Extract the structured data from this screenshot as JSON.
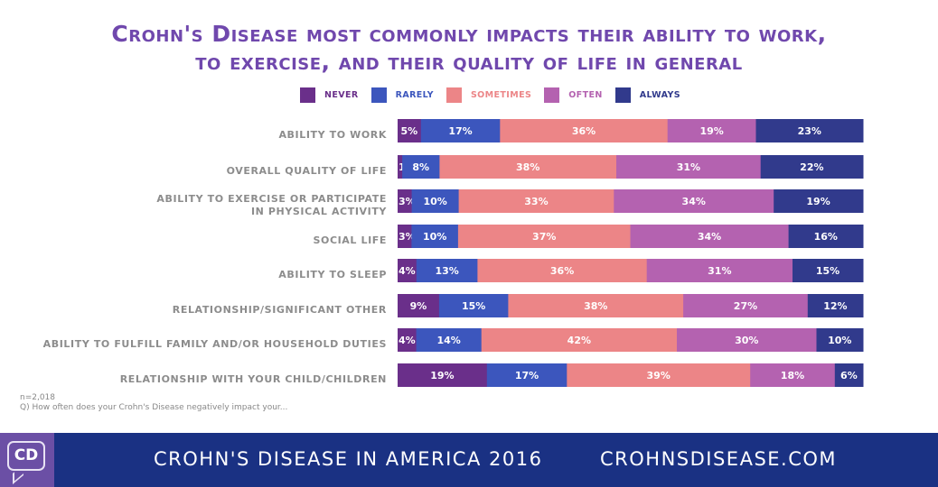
{
  "title_line1": "Crohn's Disease most commonly impacts their ability to work,",
  "title_line2": "to exercise, and their quality of life in general",
  "colors": {
    "never": "#6a2f8a",
    "rarely": "#3c56bd",
    "sometimes": "#ec8587",
    "often": "#b462b0",
    "always": "#313a8c"
  },
  "legend": [
    {
      "key": "never",
      "label": "NEVER"
    },
    {
      "key": "rarely",
      "label": "RARELY"
    },
    {
      "key": "sometimes",
      "label": "SOMETIMES"
    },
    {
      "key": "often",
      "label": "OFTEN"
    },
    {
      "key": "always",
      "label": "ALWAYS"
    }
  ],
  "chart_data": {
    "type": "bar",
    "orientation": "horizontal",
    "stacked": true,
    "title": "Crohn's Disease most commonly impacts their ability to work, to exercise, and their quality of life in general",
    "legend_position": "top",
    "categories": [
      [
        "ABILITY TO WORK"
      ],
      [
        "OVERALL QUALITY OF LIFE"
      ],
      [
        "ABILITY TO EXERCISE OR PARTICIPATE",
        "IN PHYSICAL ACTIVITY"
      ],
      [
        "SOCIAL LIFE"
      ],
      [
        "ABILITY TO SLEEP"
      ],
      [
        "RELATIONSHIP/SIGNIFICANT OTHER"
      ],
      [
        "ABILITY TO FULFILL FAMILY AND/OR HOUSEHOLD DUTIES"
      ],
      [
        "RELATIONSHIP WITH YOUR CHILD/CHILDREN"
      ]
    ],
    "series": [
      {
        "name": "NEVER",
        "key": "never",
        "values": [
          5,
          1,
          3,
          3,
          4,
          9,
          4,
          19
        ]
      },
      {
        "name": "RARELY",
        "key": "rarely",
        "values": [
          17,
          8,
          10,
          10,
          13,
          15,
          14,
          17
        ]
      },
      {
        "name": "SOMETIMES",
        "key": "sometimes",
        "values": [
          36,
          38,
          33,
          37,
          36,
          38,
          42,
          39
        ]
      },
      {
        "name": "OFTEN",
        "key": "often",
        "values": [
          19,
          31,
          34,
          34,
          31,
          27,
          30,
          18
        ]
      },
      {
        "name": "ALWAYS",
        "key": "always",
        "values": [
          23,
          22,
          19,
          16,
          15,
          12,
          10,
          6
        ]
      }
    ],
    "value_suffix": "%",
    "xlim": [
      0,
      100
    ]
  },
  "notes": {
    "sample": "n=2,018",
    "question": "Q) How often does your Crohn's Disease negatively impact your..."
  },
  "footer": {
    "logo": "CD",
    "report": "CROHN'S DISEASE IN AMERICA 2016",
    "site": "CROHNSDISEASE.COM"
  }
}
